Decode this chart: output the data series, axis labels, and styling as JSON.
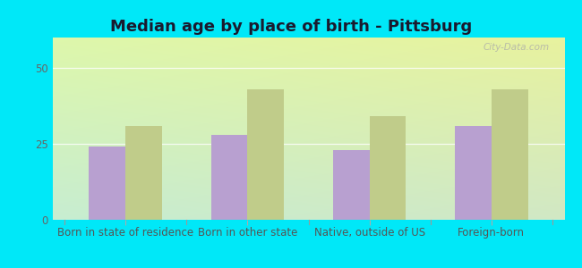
{
  "title": "Median age by place of birth - Pittsburg",
  "categories": [
    "Born in state of residence",
    "Born in other state",
    "Native, outside of US",
    "Foreign-born"
  ],
  "pittsburg_values": [
    24,
    28,
    23,
    31
  ],
  "kansas_values": [
    31,
    43,
    34,
    43
  ],
  "pittsburg_color": "#b8a0d0",
  "kansas_color": "#c0cc8a",
  "bg_outer": "#00e8f8",
  "bg_plot_top": "#e8f5e0",
  "bg_plot_bottom_left": "#c8f0e0",
  "title_fontsize": 13,
  "tick_fontsize": 8.5,
  "legend_fontsize": 10,
  "ylim": [
    0,
    60
  ],
  "yticks": [
    0,
    25,
    50
  ],
  "bar_width": 0.3,
  "watermark": "City-Data.com"
}
